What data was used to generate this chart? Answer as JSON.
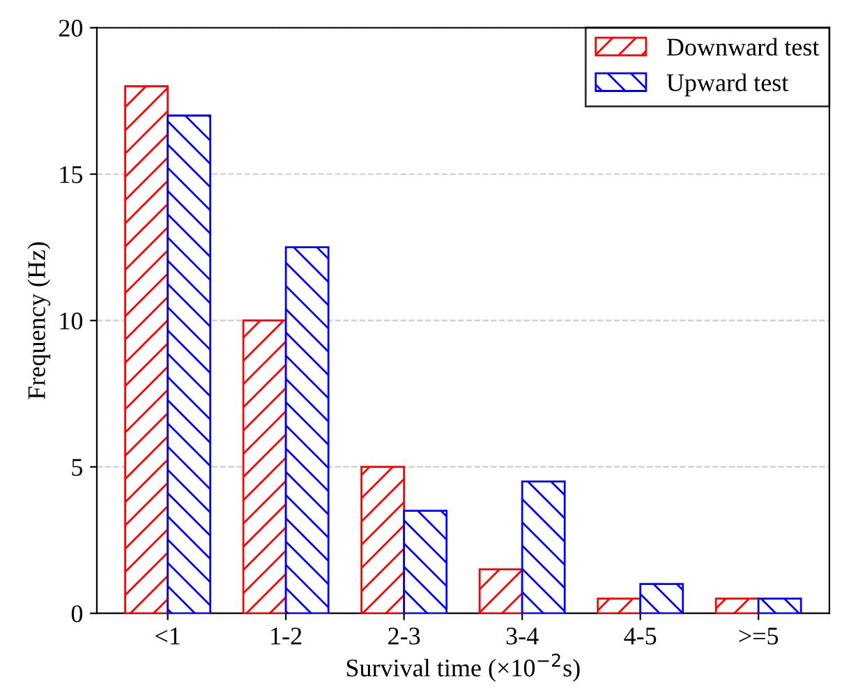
{
  "chart_data": {
    "type": "bar",
    "xlabel": "Survival time (×10$^{−2}$s)",
    "ylabel": "Frequency (Hz)",
    "categories": [
      "<1",
      "1-2",
      "2-3",
      "3-4",
      "4-5",
      ">=5"
    ],
    "series": [
      {
        "name": "Downward test",
        "color": "#ff0000",
        "values": [
          18,
          10,
          5,
          1.5,
          0.5,
          0.5
        ]
      },
      {
        "name": "Upward test",
        "color": "#0000ff",
        "values": [
          17,
          12.5,
          3.5,
          4.5,
          1,
          0.5
        ]
      }
    ],
    "ylim": [
      0,
      20
    ],
    "yticks": [
      0,
      5,
      10,
      15,
      20
    ],
    "grid": "y",
    "legend": "top right"
  }
}
